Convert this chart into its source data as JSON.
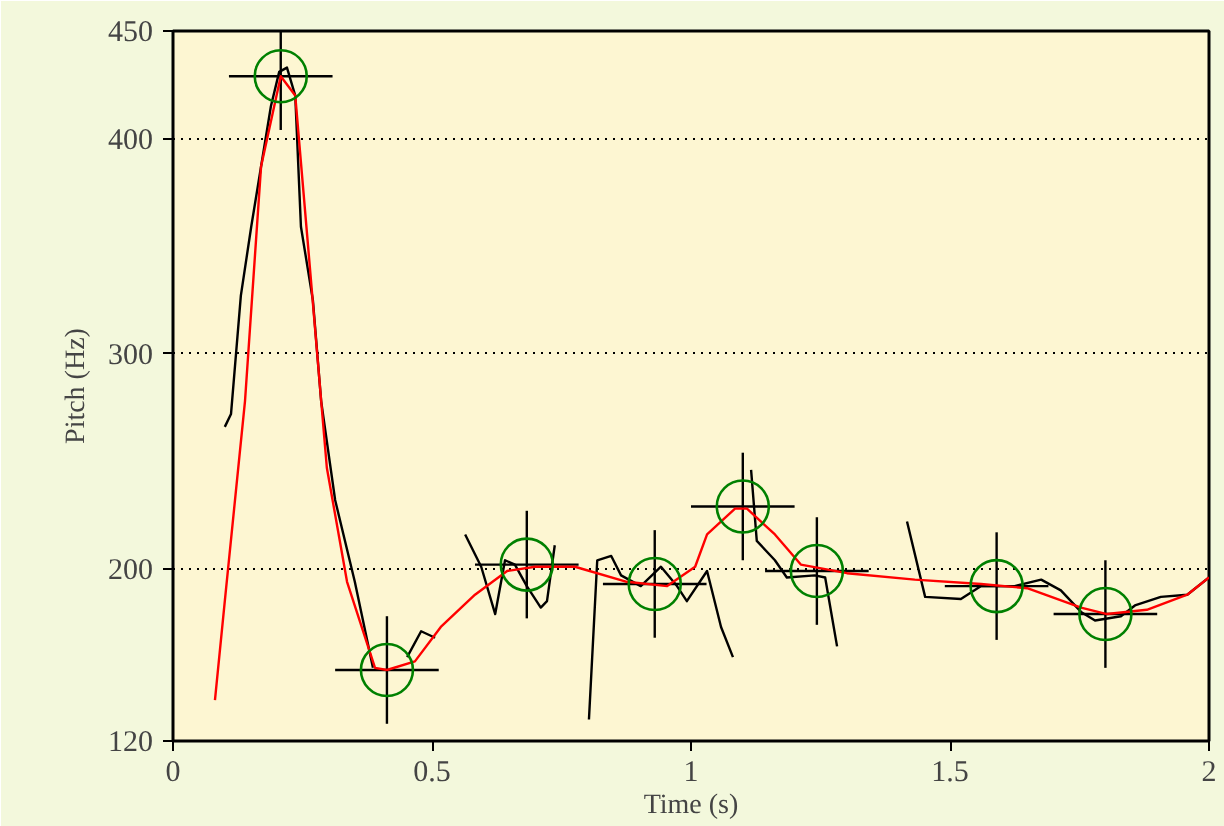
{
  "chart_data": {
    "type": "line",
    "xlabel": "Time (s)",
    "ylabel": "Pitch (Hz)",
    "xlim": [
      0,
      2
    ],
    "ylim": [
      120,
      450
    ],
    "xticks": [
      0,
      0.5,
      1,
      1.5,
      2
    ],
    "yticks": [
      120,
      200,
      300,
      400,
      450
    ],
    "grid": "y",
    "marker": "none",
    "series": [
      {
        "color": "#000000",
        "x": [
          0.1,
          0.112,
          0.131,
          0.151,
          0.17,
          0.189,
          0.205,
          0.22,
          0.236,
          0.247,
          0.27,
          0.286,
          0.313,
          0.351,
          0.386,
          0.42,
          0.452,
          0.479,
          0.506,
          0.53,
          0.564,
          0.595,
          0.622,
          0.641,
          0.66,
          0.683,
          0.71,
          0.722,
          0.737,
          0.77,
          0.803,
          0.819,
          0.846,
          0.865,
          0.903,
          0.942,
          0.973,
          0.992,
          1.031,
          1.058,
          1.081,
          1.1,
          1.116,
          1.127,
          1.162,
          1.185,
          1.239,
          1.259,
          1.282,
          1.35,
          1.417,
          1.452,
          1.521,
          1.56,
          1.625,
          1.676,
          1.714,
          1.753,
          1.78,
          1.83,
          1.857,
          1.907,
          1.958,
          2.0
        ],
        "values": [
          266,
          272,
          327,
          359,
          387,
          415,
          431,
          433,
          420,
          359,
          325,
          278,
          232,
          194,
          154,
          null,
          159,
          171,
          168,
          null,
          216,
          201,
          179,
          204,
          202,
          192,
          182,
          185,
          211,
          null,
          130,
          204,
          206,
          197,
          192,
          201,
          192,
          185,
          199,
          173,
          159,
          null,
          246,
          213,
          204,
          196,
          197,
          196,
          164,
          null,
          222,
          187,
          186,
          192,
          192,
          195,
          190,
          180,
          176,
          178,
          183,
          187,
          188,
          196
        ]
      },
      {
        "color": "#ff0000",
        "x": [
          0.081,
          0.1,
          0.139,
          0.17,
          0.208,
          0.236,
          0.259,
          0.297,
          0.336,
          0.39,
          0.413,
          0.467,
          0.517,
          0.583,
          0.645,
          0.699,
          0.776,
          0.876,
          0.954,
          1.008,
          1.031,
          1.085,
          1.108,
          1.162,
          1.212,
          1.301,
          1.432,
          1.56,
          1.649,
          1.753,
          1.803,
          1.88,
          1.958,
          2.0
        ],
        "values": [
          139,
          185,
          278,
          387,
          429,
          420,
          355,
          247,
          194,
          154,
          153,
          157,
          173,
          188,
          199,
          201,
          201,
          194,
          192,
          201,
          216,
          228,
          228,
          216,
          202,
          198,
          195,
          193,
          191,
          182,
          179,
          181,
          188,
          196
        ]
      },
      {
        "type": "scatter",
        "color": "#008000",
        "marker": "circle",
        "x": [
          0.208,
          0.413,
          0.683,
          0.93,
          1.1,
          1.243,
          1.59,
          1.8
        ],
        "values": [
          429,
          153,
          202,
          193,
          229,
          199,
          192,
          179
        ],
        "errors": [
          25,
          25,
          25,
          25,
          25,
          25,
          25,
          25
        ],
        "xerrors": [
          0.1,
          0.1,
          0.1,
          0.1,
          0.1,
          0.1,
          0.1,
          0.1
        ]
      }
    ]
  }
}
